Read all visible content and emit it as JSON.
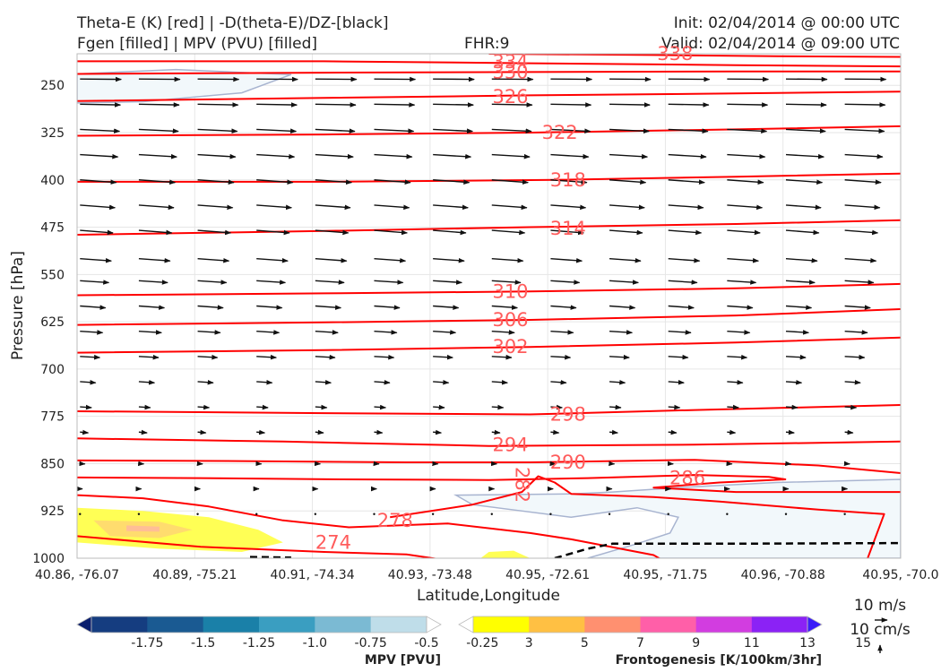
{
  "header": {
    "title_line1": "Theta-E (K) [red] | -D(theta-E)/DZ-[black]",
    "title_line2": "Fgen [filled] | MPV (PVU) [filled]",
    "fhr": "FHR:9",
    "init": "Init: 02/04/2014 @ 00:00 UTC",
    "valid": "Valid: 02/04/2014 @ 09:00 UTC"
  },
  "chart_data": {
    "type": "cross-section contour",
    "xlabel": "Latitude,Longitude",
    "ylabel": "Pressure [hPa]",
    "x_ticks": [
      "40.86, -76.07",
      "40.89, -75.21",
      "40.91, -74.34",
      "40.93, -73.48",
      "40.95, -72.61",
      "40.95, -71.75",
      "40.96, -70.88",
      "40.95, -70.0"
    ],
    "y_ticks": [
      250,
      325,
      400,
      475,
      550,
      625,
      700,
      775,
      850,
      925,
      1000
    ],
    "y_range": [
      1000,
      200
    ],
    "y_inverted": true,
    "grid": true,
    "theta_e_contours": [
      {
        "value": 274,
        "label": "274",
        "points": [
          [
            0.0,
            965
          ],
          [
            0.15,
            982
          ],
          [
            0.3,
            990
          ],
          [
            0.4,
            994
          ],
          [
            0.5,
            1013
          ]
        ]
      },
      {
        "value": 278,
        "label": "278",
        "points": [
          [
            0.0,
            900
          ],
          [
            0.08,
            905
          ],
          [
            0.16,
            918
          ],
          [
            0.25,
            940
          ],
          [
            0.33,
            951
          ],
          [
            0.45,
            945
          ],
          [
            0.55,
            960
          ],
          [
            0.6,
            970
          ],
          [
            0.7,
            995
          ],
          [
            0.72,
            1010
          ]
        ]
      },
      {
        "value": 282,
        "label": "282",
        "points": [
          [
            0.38,
            935
          ],
          [
            0.48,
            915
          ],
          [
            0.54,
            895
          ],
          [
            0.56,
            870
          ],
          [
            0.58,
            880
          ],
          [
            0.6,
            898
          ],
          [
            0.7,
            903
          ],
          [
            0.78,
            910
          ],
          [
            0.9,
            923
          ],
          [
            0.98,
            930
          ],
          [
            0.96,
            1000
          ]
        ]
      },
      {
        "value": 286,
        "label": "286",
        "points": [
          [
            0.0,
            872
          ],
          [
            0.15,
            873
          ],
          [
            0.32,
            875
          ],
          [
            0.5,
            876
          ],
          [
            0.62,
            873
          ],
          [
            0.75,
            868
          ],
          [
            0.84,
            871
          ],
          [
            0.86,
            875
          ],
          [
            0.78,
            880
          ],
          [
            0.7,
            888
          ],
          [
            0.8,
            895
          ],
          [
            0.9,
            895
          ],
          [
            1.0,
            895
          ]
        ]
      },
      {
        "value": 290,
        "label": "290",
        "points": [
          [
            0.0,
            845
          ],
          [
            0.2,
            846
          ],
          [
            0.4,
            848
          ],
          [
            0.55,
            848
          ],
          [
            0.75,
            844
          ],
          [
            0.9,
            853
          ],
          [
            1.0,
            865
          ]
        ]
      },
      {
        "value": 294,
        "label": "294",
        "points": [
          [
            0.0,
            810
          ],
          [
            0.25,
            815
          ],
          [
            0.5,
            822
          ],
          [
            0.75,
            820
          ],
          [
            1.0,
            815
          ]
        ]
      },
      {
        "value": 298,
        "label": "298",
        "points": [
          [
            0.0,
            767
          ],
          [
            0.3,
            770
          ],
          [
            0.55,
            772
          ],
          [
            0.75,
            765
          ],
          [
            1.0,
            757
          ]
        ]
      },
      {
        "value": 302,
        "label": "302",
        "points": [
          [
            0.0,
            674
          ],
          [
            0.3,
            670
          ],
          [
            0.55,
            665
          ],
          [
            0.8,
            658
          ],
          [
            1.0,
            650
          ]
        ]
      },
      {
        "value": 306,
        "label": "306",
        "points": [
          [
            0.0,
            630
          ],
          [
            0.3,
            626
          ],
          [
            0.55,
            622
          ],
          [
            0.8,
            615
          ],
          [
            1.0,
            605
          ]
        ]
      },
      {
        "value": 310,
        "label": "310",
        "points": [
          [
            0.0,
            583
          ],
          [
            0.3,
            580
          ],
          [
            0.55,
            577
          ],
          [
            0.8,
            572
          ],
          [
            1.0,
            565
          ]
        ]
      },
      {
        "value": 314,
        "label": "314",
        "points": [
          [
            0.0,
            487
          ],
          [
            0.3,
            481
          ],
          [
            0.55,
            475
          ],
          [
            0.8,
            470
          ],
          [
            1.0,
            464
          ]
        ]
      },
      {
        "value": 318,
        "label": "318",
        "points": [
          [
            0.0,
            403
          ],
          [
            0.3,
            403
          ],
          [
            0.58,
            400
          ],
          [
            0.8,
            395
          ],
          [
            1.0,
            390
          ]
        ]
      },
      {
        "value": 322,
        "label": "322",
        "points": [
          [
            0.0,
            330
          ],
          [
            0.3,
            328
          ],
          [
            0.55,
            325
          ],
          [
            0.8,
            320
          ],
          [
            1.0,
            315
          ]
        ]
      },
      {
        "value": 326,
        "label": "326",
        "points": [
          [
            0.0,
            275
          ],
          [
            0.3,
            270
          ],
          [
            0.55,
            266
          ],
          [
            0.8,
            263
          ],
          [
            1.0,
            260
          ]
        ]
      },
      {
        "value": 330,
        "label": "330",
        "points": [
          [
            0.0,
            232
          ],
          [
            0.3,
            230
          ],
          [
            0.55,
            229
          ],
          [
            0.8,
            228
          ],
          [
            1.0,
            228
          ]
        ]
      },
      {
        "value": 334,
        "label": "334",
        "points": [
          [
            0.0,
            212
          ],
          [
            0.3,
            212
          ],
          [
            0.55,
            215
          ],
          [
            0.8,
            218
          ],
          [
            1.0,
            220
          ]
        ]
      },
      {
        "value": 338,
        "label": "338",
        "points": [
          [
            0.5,
            200
          ],
          [
            0.7,
            202
          ],
          [
            0.85,
            204
          ],
          [
            1.0,
            205
          ]
        ]
      }
    ],
    "stability_dashed": [
      [
        0.21,
        998
      ],
      [
        0.26,
        999
      ]
    ],
    "stability_dashed_2": [
      [
        0.58,
        1000
      ],
      [
        0.62,
        985
      ],
      [
        0.65,
        977
      ],
      [
        0.8,
        977
      ],
      [
        1.0,
        976
      ]
    ],
    "mpv_fill": {
      "color": "#f2f8fb",
      "regions": [
        [
          [
            0.0,
            232
          ],
          [
            0.12,
            225
          ],
          [
            0.26,
            233
          ],
          [
            0.2,
            262
          ],
          [
            0.08,
            276
          ],
          [
            0.0,
            278
          ]
        ],
        [
          [
            0.46,
            900
          ],
          [
            0.6,
            898
          ],
          [
            0.65,
            895
          ],
          [
            0.73,
            888
          ],
          [
            0.85,
            880
          ],
          [
            1.0,
            875
          ],
          [
            1.0,
            1000
          ],
          [
            0.62,
            1000
          ],
          [
            0.68,
            977
          ],
          [
            0.72,
            960
          ],
          [
            0.73,
            935
          ],
          [
            0.68,
            920
          ],
          [
            0.6,
            935
          ],
          [
            0.48,
            915
          ]
        ]
      ]
    },
    "fgen_fill": {
      "levels": [
        3,
        5,
        7
      ],
      "colors": [
        "#ffff55",
        "#ffdc6e",
        "#ffbe96"
      ],
      "regions": [
        {
          "level": 3,
          "points": [
            [
              0.0,
              920
            ],
            [
              0.08,
              925
            ],
            [
              0.16,
              935
            ],
            [
              0.22,
              955
            ],
            [
              0.25,
              975
            ],
            [
              0.2,
              990
            ],
            [
              0.1,
              985
            ],
            [
              0.0,
              975
            ]
          ]
        },
        {
          "level": 5,
          "points": [
            [
              0.02,
              940
            ],
            [
              0.1,
              942
            ],
            [
              0.14,
              955
            ],
            [
              0.1,
              968
            ],
            [
              0.04,
              965
            ]
          ]
        },
        {
          "level": 7,
          "points": [
            [
              0.06,
              948
            ],
            [
              0.1,
              950
            ],
            [
              0.1,
              958
            ],
            [
              0.06,
              957
            ]
          ]
        },
        {
          "level": 3,
          "points": [
            [
              0.49,
              1000
            ],
            [
              0.5,
              990
            ],
            [
              0.53,
              988
            ],
            [
              0.55,
              1000
            ]
          ]
        }
      ]
    },
    "wind_rows": [
      {
        "p": 240,
        "u": 1.0,
        "v": -0.01
      },
      {
        "p": 280,
        "u": 0.98,
        "v": -0.02
      },
      {
        "p": 320,
        "u": 0.96,
        "v": -0.05
      },
      {
        "p": 360,
        "u": 0.92,
        "v": -0.06
      },
      {
        "p": 400,
        "u": 0.88,
        "v": -0.07
      },
      {
        "p": 440,
        "u": 0.85,
        "v": -0.07
      },
      {
        "p": 480,
        "u": 0.8,
        "v": -0.07
      },
      {
        "p": 525,
        "u": 0.76,
        "v": -0.06
      },
      {
        "p": 560,
        "u": 0.7,
        "v": -0.05
      },
      {
        "p": 600,
        "u": 0.62,
        "v": -0.05
      },
      {
        "p": 640,
        "u": 0.55,
        "v": -0.04
      },
      {
        "p": 680,
        "u": 0.48,
        "v": -0.03
      },
      {
        "p": 720,
        "u": 0.38,
        "v": -0.03
      },
      {
        "p": 760,
        "u": 0.28,
        "v": -0.02
      },
      {
        "p": 800,
        "u": 0.2,
        "v": -0.02
      },
      {
        "p": 850,
        "u": 0.12,
        "v": -0.01
      },
      {
        "p": 890,
        "u": 0.06,
        "v": 0.0
      },
      {
        "p": 930,
        "u": 0.02,
        "v": 0.0
      }
    ],
    "mpv_colorbar": {
      "title": "MPV [PVU]",
      "ticks": [
        "-1.75",
        "-1.5",
        "-1.25",
        "-1.0",
        "-0.75",
        "-0.5",
        "-0.25"
      ],
      "colors": [
        "#0a1e6e",
        "#153d80",
        "#1a5a92",
        "#1a80a8",
        "#3a9ec1",
        "#7bbad3",
        "#bfdde9",
        "#ffffff"
      ]
    },
    "fgen_colorbar": {
      "title": "Frontogenesis [K/100km/3hr]",
      "ticks": [
        "3",
        "5",
        "7",
        "9",
        "11",
        "13",
        "15"
      ],
      "colors": [
        "#ffffff",
        "#ffff00",
        "#ffc043",
        "#ff9070",
        "#ff5fa8",
        "#d23de0",
        "#8b22f5",
        "#3a1cf8"
      ]
    },
    "wind_key": {
      "horizontal": "10 m/s",
      "vertical": "10 cm/s"
    }
  }
}
